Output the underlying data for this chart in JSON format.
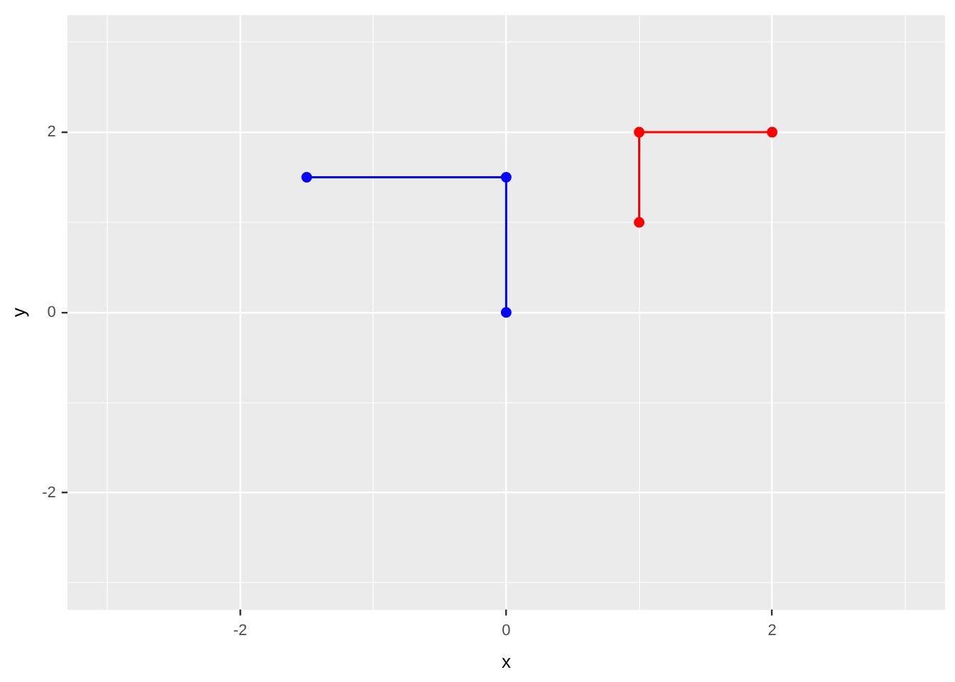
{
  "chart_data": {
    "type": "line",
    "xlabel": "x",
    "ylabel": "y",
    "xlim": [
      -3.3,
      3.3
    ],
    "ylim": [
      -3.3,
      3.3
    ],
    "xticks": [
      {
        "value": -3,
        "label": null
      },
      -2,
      {
        "value": -1,
        "label": null
      },
      0,
      {
        "value": 1,
        "label": null
      },
      2,
      {
        "value": 3,
        "label": null
      }
    ],
    "yticks": [
      {
        "value": -3,
        "label": null
      },
      -2,
      {
        "value": -1,
        "label": null
      },
      0,
      {
        "value": 1,
        "label": null
      },
      2,
      {
        "value": 3,
        "label": null
      }
    ],
    "grid": true,
    "legend": false,
    "marker": "circle",
    "line_style": "solid",
    "series": [
      {
        "color": "#0000ff",
        "x": [
          -1.5,
          0,
          0
        ],
        "values": [
          1.5,
          1.5,
          0
        ]
      },
      {
        "color": "#ff0000",
        "x": [
          1,
          1,
          2
        ],
        "values": [
          1,
          2,
          2
        ]
      }
    ]
  }
}
